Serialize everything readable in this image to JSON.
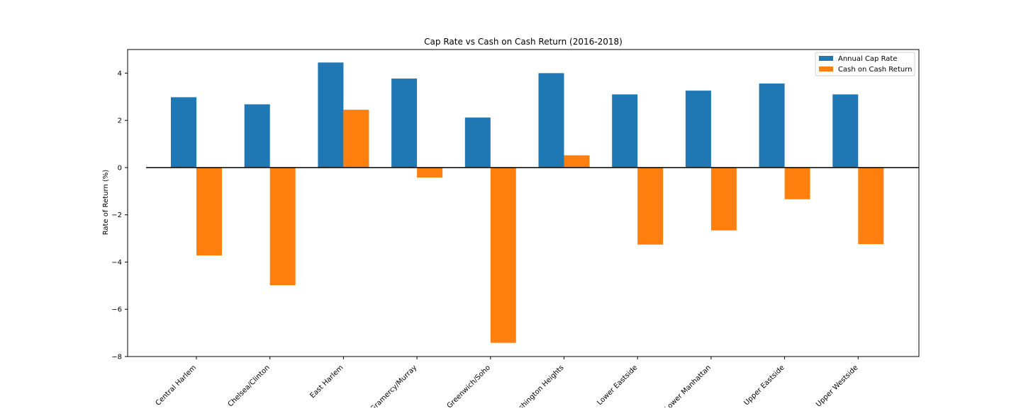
{
  "chart_data": {
    "type": "bar",
    "title": "Cap Rate vs Cash on Cash Return (2016-2018)",
    "xlabel": "",
    "ylabel": "Rate of Return (%)",
    "ylim": [
      -8,
      5
    ],
    "yticks": [
      -8,
      -6,
      -4,
      -2,
      0,
      2,
      4
    ],
    "ytick_labels": [
      "−8",
      "−6",
      "−4",
      "−2",
      "0",
      "2",
      "4"
    ],
    "categories": [
      "Central Harlem",
      "Chelsea/Clinton",
      "East Harlem",
      "Gramercy/Murray",
      "Greenwich/Soho",
      "Washington Heights",
      "Lower Eastside",
      "Lower Manhattan",
      "Upper Eastside",
      "Upper Westside"
    ],
    "series": [
      {
        "name": "Annual Cap Rate",
        "color": "#1f77b4",
        "values": [
          2.98,
          2.68,
          4.45,
          3.77,
          2.12,
          4.0,
          3.1,
          3.26,
          3.56,
          3.1
        ]
      },
      {
        "name": "Cash on Cash Return",
        "color": "#ff7f0e",
        "values": [
          -3.72,
          -4.98,
          2.45,
          -0.42,
          -7.42,
          0.52,
          -3.26,
          -2.66,
          -1.34,
          -3.24
        ]
      }
    ],
    "legend_position": "upper right",
    "grid": false,
    "zero_line": true
  }
}
